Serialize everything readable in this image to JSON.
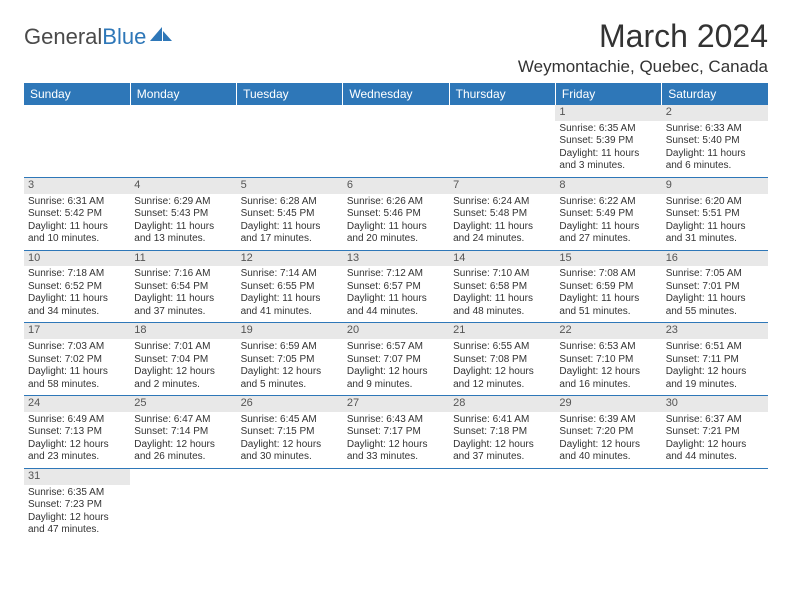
{
  "logo": {
    "text1": "General",
    "text2": "Blue"
  },
  "title": "March 2024",
  "location": "Weymontachie, Quebec, Canada",
  "colors": {
    "header_bg": "#2e77b8",
    "header_text": "#ffffff",
    "daynum_bg": "#e8e8e8",
    "text": "#333333",
    "border": "#2e77b8"
  },
  "weekdays": [
    "Sunday",
    "Monday",
    "Tuesday",
    "Wednesday",
    "Thursday",
    "Friday",
    "Saturday"
  ],
  "weeks": [
    [
      null,
      null,
      null,
      null,
      null,
      {
        "n": "1",
        "sunrise": "Sunrise: 6:35 AM",
        "sunset": "Sunset: 5:39 PM",
        "day1": "Daylight: 11 hours",
        "day2": "and 3 minutes."
      },
      {
        "n": "2",
        "sunrise": "Sunrise: 6:33 AM",
        "sunset": "Sunset: 5:40 PM",
        "day1": "Daylight: 11 hours",
        "day2": "and 6 minutes."
      }
    ],
    [
      {
        "n": "3",
        "sunrise": "Sunrise: 6:31 AM",
        "sunset": "Sunset: 5:42 PM",
        "day1": "Daylight: 11 hours",
        "day2": "and 10 minutes."
      },
      {
        "n": "4",
        "sunrise": "Sunrise: 6:29 AM",
        "sunset": "Sunset: 5:43 PM",
        "day1": "Daylight: 11 hours",
        "day2": "and 13 minutes."
      },
      {
        "n": "5",
        "sunrise": "Sunrise: 6:28 AM",
        "sunset": "Sunset: 5:45 PM",
        "day1": "Daylight: 11 hours",
        "day2": "and 17 minutes."
      },
      {
        "n": "6",
        "sunrise": "Sunrise: 6:26 AM",
        "sunset": "Sunset: 5:46 PM",
        "day1": "Daylight: 11 hours",
        "day2": "and 20 minutes."
      },
      {
        "n": "7",
        "sunrise": "Sunrise: 6:24 AM",
        "sunset": "Sunset: 5:48 PM",
        "day1": "Daylight: 11 hours",
        "day2": "and 24 minutes."
      },
      {
        "n": "8",
        "sunrise": "Sunrise: 6:22 AM",
        "sunset": "Sunset: 5:49 PM",
        "day1": "Daylight: 11 hours",
        "day2": "and 27 minutes."
      },
      {
        "n": "9",
        "sunrise": "Sunrise: 6:20 AM",
        "sunset": "Sunset: 5:51 PM",
        "day1": "Daylight: 11 hours",
        "day2": "and 31 minutes."
      }
    ],
    [
      {
        "n": "10",
        "sunrise": "Sunrise: 7:18 AM",
        "sunset": "Sunset: 6:52 PM",
        "day1": "Daylight: 11 hours",
        "day2": "and 34 minutes."
      },
      {
        "n": "11",
        "sunrise": "Sunrise: 7:16 AM",
        "sunset": "Sunset: 6:54 PM",
        "day1": "Daylight: 11 hours",
        "day2": "and 37 minutes."
      },
      {
        "n": "12",
        "sunrise": "Sunrise: 7:14 AM",
        "sunset": "Sunset: 6:55 PM",
        "day1": "Daylight: 11 hours",
        "day2": "and 41 minutes."
      },
      {
        "n": "13",
        "sunrise": "Sunrise: 7:12 AM",
        "sunset": "Sunset: 6:57 PM",
        "day1": "Daylight: 11 hours",
        "day2": "and 44 minutes."
      },
      {
        "n": "14",
        "sunrise": "Sunrise: 7:10 AM",
        "sunset": "Sunset: 6:58 PM",
        "day1": "Daylight: 11 hours",
        "day2": "and 48 minutes."
      },
      {
        "n": "15",
        "sunrise": "Sunrise: 7:08 AM",
        "sunset": "Sunset: 6:59 PM",
        "day1": "Daylight: 11 hours",
        "day2": "and 51 minutes."
      },
      {
        "n": "16",
        "sunrise": "Sunrise: 7:05 AM",
        "sunset": "Sunset: 7:01 PM",
        "day1": "Daylight: 11 hours",
        "day2": "and 55 minutes."
      }
    ],
    [
      {
        "n": "17",
        "sunrise": "Sunrise: 7:03 AM",
        "sunset": "Sunset: 7:02 PM",
        "day1": "Daylight: 11 hours",
        "day2": "and 58 minutes."
      },
      {
        "n": "18",
        "sunrise": "Sunrise: 7:01 AM",
        "sunset": "Sunset: 7:04 PM",
        "day1": "Daylight: 12 hours",
        "day2": "and 2 minutes."
      },
      {
        "n": "19",
        "sunrise": "Sunrise: 6:59 AM",
        "sunset": "Sunset: 7:05 PM",
        "day1": "Daylight: 12 hours",
        "day2": "and 5 minutes."
      },
      {
        "n": "20",
        "sunrise": "Sunrise: 6:57 AM",
        "sunset": "Sunset: 7:07 PM",
        "day1": "Daylight: 12 hours",
        "day2": "and 9 minutes."
      },
      {
        "n": "21",
        "sunrise": "Sunrise: 6:55 AM",
        "sunset": "Sunset: 7:08 PM",
        "day1": "Daylight: 12 hours",
        "day2": "and 12 minutes."
      },
      {
        "n": "22",
        "sunrise": "Sunrise: 6:53 AM",
        "sunset": "Sunset: 7:10 PM",
        "day1": "Daylight: 12 hours",
        "day2": "and 16 minutes."
      },
      {
        "n": "23",
        "sunrise": "Sunrise: 6:51 AM",
        "sunset": "Sunset: 7:11 PM",
        "day1": "Daylight: 12 hours",
        "day2": "and 19 minutes."
      }
    ],
    [
      {
        "n": "24",
        "sunrise": "Sunrise: 6:49 AM",
        "sunset": "Sunset: 7:13 PM",
        "day1": "Daylight: 12 hours",
        "day2": "and 23 minutes."
      },
      {
        "n": "25",
        "sunrise": "Sunrise: 6:47 AM",
        "sunset": "Sunset: 7:14 PM",
        "day1": "Daylight: 12 hours",
        "day2": "and 26 minutes."
      },
      {
        "n": "26",
        "sunrise": "Sunrise: 6:45 AM",
        "sunset": "Sunset: 7:15 PM",
        "day1": "Daylight: 12 hours",
        "day2": "and 30 minutes."
      },
      {
        "n": "27",
        "sunrise": "Sunrise: 6:43 AM",
        "sunset": "Sunset: 7:17 PM",
        "day1": "Daylight: 12 hours",
        "day2": "and 33 minutes."
      },
      {
        "n": "28",
        "sunrise": "Sunrise: 6:41 AM",
        "sunset": "Sunset: 7:18 PM",
        "day1": "Daylight: 12 hours",
        "day2": "and 37 minutes."
      },
      {
        "n": "29",
        "sunrise": "Sunrise: 6:39 AM",
        "sunset": "Sunset: 7:20 PM",
        "day1": "Daylight: 12 hours",
        "day2": "and 40 minutes."
      },
      {
        "n": "30",
        "sunrise": "Sunrise: 6:37 AM",
        "sunset": "Sunset: 7:21 PM",
        "day1": "Daylight: 12 hours",
        "day2": "and 44 minutes."
      }
    ],
    [
      {
        "n": "31",
        "sunrise": "Sunrise: 6:35 AM",
        "sunset": "Sunset: 7:23 PM",
        "day1": "Daylight: 12 hours",
        "day2": "and 47 minutes."
      },
      null,
      null,
      null,
      null,
      null,
      null
    ]
  ]
}
